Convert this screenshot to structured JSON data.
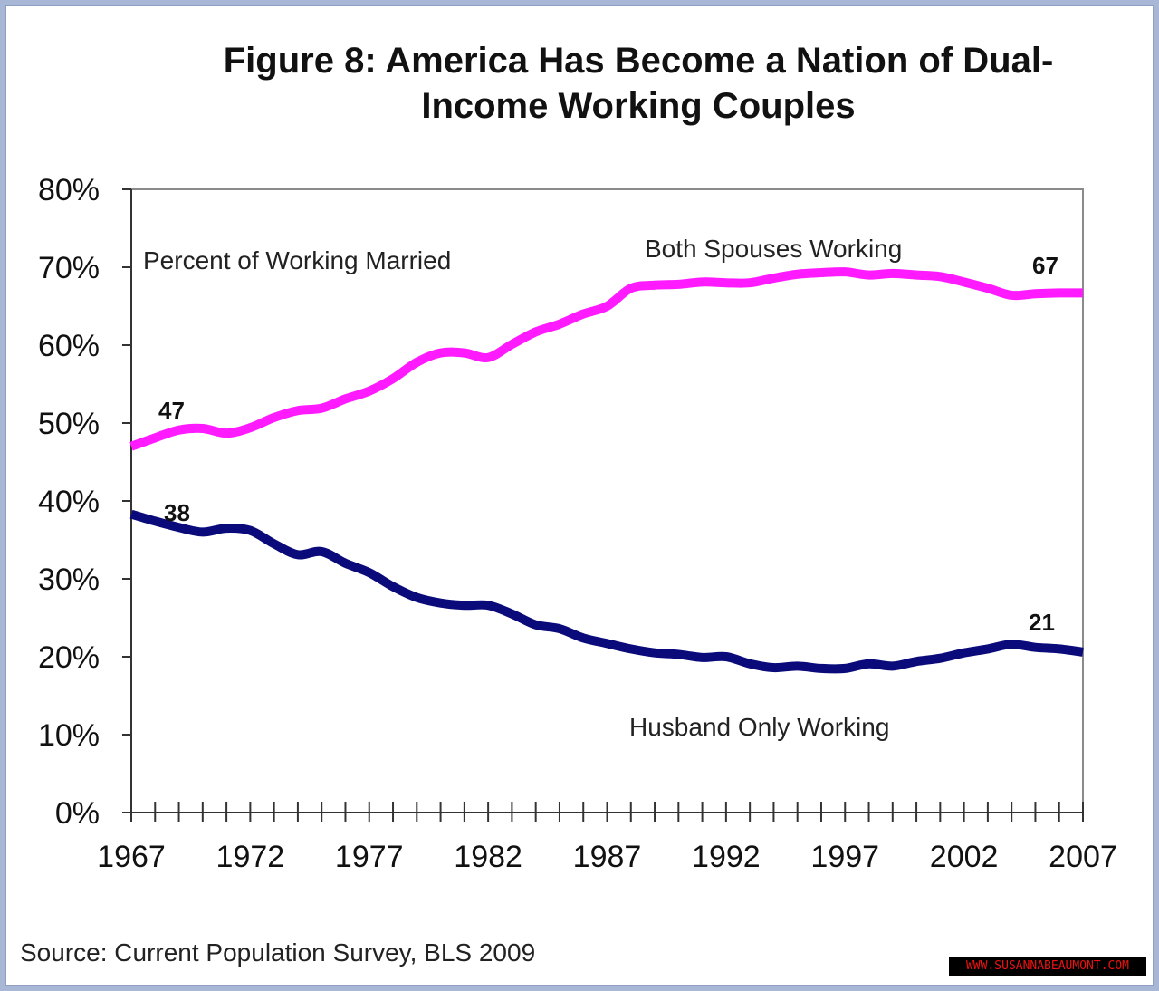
{
  "chart_data": {
    "type": "line",
    "title": "Figure 8: America Has Become a Nation of Dual-Income Working Couples",
    "xlabel": "",
    "ylabel": "Percent of Working Married",
    "xlim": [
      1967,
      2007
    ],
    "ylim": [
      0,
      80
    ],
    "y_ticks": [
      "0%",
      "10%",
      "20%",
      "30%",
      "40%",
      "50%",
      "60%",
      "70%",
      "80%"
    ],
    "x_ticks": [
      "1967",
      "1972",
      "1977",
      "1982",
      "1987",
      "1992",
      "1997",
      "2002",
      "2007"
    ],
    "grid": false,
    "x": [
      1967,
      1968,
      1969,
      1970,
      1971,
      1972,
      1973,
      1974,
      1975,
      1976,
      1977,
      1978,
      1979,
      1980,
      1981,
      1982,
      1983,
      1984,
      1985,
      1986,
      1987,
      1988,
      1989,
      1990,
      1991,
      1992,
      1993,
      1994,
      1995,
      1996,
      1997,
      1998,
      1999,
      2000,
      2001,
      2002,
      2003,
      2004,
      2005,
      2006,
      2007
    ],
    "series": [
      {
        "name": "Both Spouses Working",
        "color": "#ff1aff",
        "values": [
          47.0,
          48.1,
          49.1,
          49.3,
          48.7,
          49.4,
          50.7,
          51.6,
          51.9,
          53.1,
          54.1,
          55.7,
          57.8,
          59.0,
          59.0,
          58.4,
          60.1,
          61.7,
          62.7,
          64.0,
          65.0,
          67.3,
          67.7,
          67.8,
          68.1,
          68.0,
          68.0,
          68.6,
          69.1,
          69.3,
          69.4,
          69.0,
          69.2,
          69.0,
          68.8,
          68.1,
          67.3,
          66.4,
          66.6,
          66.7,
          66.7
        ],
        "labels": {
          "start": "47",
          "end": "67"
        }
      },
      {
        "name": "Husband Only Working",
        "color": "#0a0a7a",
        "values": [
          38.3,
          37.4,
          36.6,
          36.0,
          36.5,
          36.2,
          34.5,
          33.1,
          33.5,
          32.0,
          30.8,
          29.0,
          27.6,
          26.9,
          26.6,
          26.6,
          25.5,
          24.1,
          23.6,
          22.4,
          21.7,
          21.0,
          20.5,
          20.3,
          19.9,
          20.0,
          19.1,
          18.6,
          18.8,
          18.5,
          18.5,
          19.1,
          18.8,
          19.4,
          19.8,
          20.5,
          21.0,
          21.6,
          21.2,
          21.0,
          20.6
        ],
        "labels": {
          "start": "38",
          "end": "21"
        }
      }
    ]
  },
  "title_line1": "Figure 8: America Has Become a Nation of Dual-",
  "title_line2": "Income Working Couples",
  "source": "Source: Current Population  Survey, BLS 2009",
  "watermark": "WWW.SUSANNABEAUMONT.COM"
}
